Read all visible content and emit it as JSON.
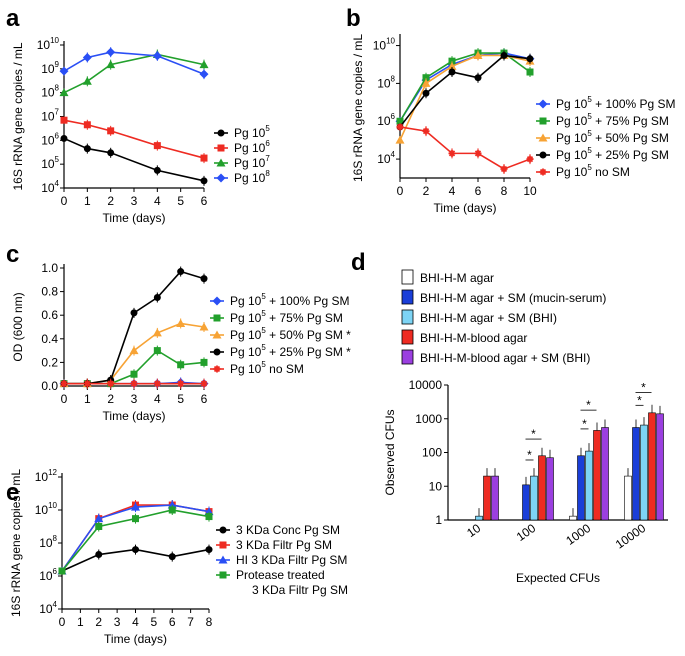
{
  "colors": {
    "black": "#000000",
    "red": "#ee2b22",
    "green": "#22a02c",
    "blue": "#2a4ff5",
    "orange": "#f7a335",
    "darkblue": "#1a3ed8",
    "lightblue": "#7dd4f5",
    "purple": "#9b3fe0",
    "white": "#ffffff"
  },
  "chart_data": [
    {
      "id": "a",
      "panel_label": "a",
      "type": "line",
      "yscale": "log",
      "ylabel": "16S rRNA gene copies / mL",
      "xlabel": "Time (days)",
      "xlim": [
        0,
        6
      ],
      "ylim_exp": [
        4,
        10
      ],
      "xticks": [
        "0",
        "1",
        "2",
        "3",
        "4",
        "5",
        "6"
      ],
      "series": [
        {
          "name": "Pg 10^5",
          "color": "black",
          "marker": "circle",
          "x": [
            0,
            1,
            2,
            4,
            6
          ],
          "y": [
            1200000.0,
            450000.0,
            300000.0,
            55000.0,
            20000.0
          ]
        },
        {
          "name": "Pg 10^6",
          "color": "red",
          "marker": "square",
          "x": [
            0,
            1,
            2,
            4,
            6
          ],
          "y": [
            7000000.0,
            4500000.0,
            2500000.0,
            600000.0,
            180000.0
          ]
        },
        {
          "name": "Pg 10^7",
          "color": "green",
          "marker": "triangle",
          "x": [
            0,
            1,
            2,
            4,
            6
          ],
          "y": [
            100000000.0,
            300000000.0,
            1500000000.0,
            4000000000.0,
            1500000000.0
          ]
        },
        {
          "name": "Pg 10^8",
          "color": "blue",
          "marker": "diamond",
          "x": [
            0,
            1,
            2,
            4,
            6
          ],
          "y": [
            800000000.0,
            3000000000.0,
            5000000000.0,
            3500000000.0,
            600000000.0
          ]
        }
      ],
      "legend": [
        {
          "base": "Pg 10",
          "exp": "5",
          "rest": "",
          "color": "black",
          "marker": "circle"
        },
        {
          "base": "Pg 10",
          "exp": "6",
          "rest": "",
          "color": "red",
          "marker": "square"
        },
        {
          "base": "Pg 10",
          "exp": "7",
          "rest": "",
          "color": "green",
          "marker": "triangle"
        },
        {
          "base": "Pg 10",
          "exp": "8",
          "rest": "",
          "color": "blue",
          "marker": "diamond"
        }
      ]
    },
    {
      "id": "b",
      "panel_label": "b",
      "type": "line",
      "yscale": "log",
      "ylabel": "16S rRNA gene copies / mL",
      "xlabel": "Time (days)",
      "xlim": [
        0,
        10
      ],
      "ylim_exp": [
        3,
        10.4
      ],
      "yticks_exp": [
        4,
        6,
        8,
        10
      ],
      "xticks": [
        "0",
        "2",
        "4",
        "6",
        "8",
        "10"
      ],
      "series": [
        {
          "name": "Pg 10^5 + 100% Pg SM",
          "color": "blue",
          "marker": "diamond",
          "x": [
            0,
            2,
            4,
            6,
            8,
            10
          ],
          "y": [
            1000000.0,
            150000000.0,
            1000000000.0,
            3000000000.0,
            4000000000.0,
            2000000000.0
          ]
        },
        {
          "name": "Pg 10^5 + 75% Pg SM",
          "color": "green",
          "marker": "square",
          "x": [
            0,
            2,
            4,
            6,
            8,
            10
          ],
          "y": [
            1000000.0,
            200000000.0,
            1500000000.0,
            4000000000.0,
            4000000000.0,
            400000000.0
          ]
        },
        {
          "name": "Pg 10^5 + 50% Pg SM",
          "color": "orange",
          "marker": "triangle",
          "x": [
            0,
            2,
            4,
            6,
            8,
            10
          ],
          "y": [
            100000.0,
            100000000.0,
            800000000.0,
            3000000000.0,
            3000000000.0,
            1500000000.0
          ]
        },
        {
          "name": "Pg 10^5 + 25% Pg SM",
          "color": "black",
          "marker": "circle",
          "x": [
            0,
            2,
            4,
            6,
            8,
            10
          ],
          "y": [
            500000.0,
            30000000.0,
            400000000.0,
            200000000.0,
            3000000000.0,
            2000000000.0
          ]
        },
        {
          "name": "Pg 10^5 no SM",
          "color": "red",
          "marker": "star",
          "x": [
            0,
            2,
            4,
            6,
            8,
            10
          ],
          "y": [
            500000.0,
            300000.0,
            20000.0,
            20000.0,
            3000.0,
            10000.0
          ]
        }
      ],
      "legend": [
        {
          "base": "Pg 10",
          "exp": "5",
          "rest": " + 100% Pg SM",
          "color": "blue",
          "marker": "diamond"
        },
        {
          "base": "Pg 10",
          "exp": "5",
          "rest": " + 75% Pg SM",
          "color": "green",
          "marker": "square"
        },
        {
          "base": "Pg 10",
          "exp": "5",
          "rest": " + 50% Pg SM",
          "color": "orange",
          "marker": "triangle"
        },
        {
          "base": "Pg 10",
          "exp": "5",
          "rest": " + 25% Pg SM",
          "color": "black",
          "marker": "circle"
        },
        {
          "base": "Pg 10",
          "exp": "5",
          "rest": " no SM",
          "color": "red",
          "marker": "star"
        }
      ]
    },
    {
      "id": "c",
      "panel_label": "c",
      "type": "line",
      "yscale": "linear",
      "ylabel": "OD (600 nm)",
      "xlabel": "Time (days)",
      "xlim": [
        0,
        6
      ],
      "ylim": [
        0,
        1.0
      ],
      "yticks": [
        "0.0",
        "0.2",
        "0.4",
        "0.6",
        "0.8",
        "1.0"
      ],
      "xticks": [
        "0",
        "1",
        "2",
        "3",
        "4",
        "5",
        "6"
      ],
      "series": [
        {
          "name": "Pg 10^5 + 100% Pg SM",
          "color": "blue",
          "marker": "diamond",
          "x": [
            0,
            1,
            2,
            3,
            4,
            5,
            6
          ],
          "y": [
            0.02,
            0.02,
            0.02,
            0.02,
            0.02,
            0.03,
            0.02
          ]
        },
        {
          "name": "Pg 10^5 + 75% Pg SM",
          "color": "green",
          "marker": "square",
          "x": [
            0,
            1,
            2,
            3,
            4,
            5,
            6
          ],
          "y": [
            0.02,
            0.02,
            0.02,
            0.1,
            0.3,
            0.18,
            0.2
          ]
        },
        {
          "name": "Pg 10^5 + 50% Pg SM *",
          "color": "orange",
          "marker": "triangle",
          "x": [
            0,
            1,
            2,
            3,
            4,
            5,
            6
          ],
          "y": [
            0.02,
            0.02,
            0.05,
            0.3,
            0.45,
            0.53,
            0.5
          ]
        },
        {
          "name": "Pg 10^5 + 25% Pg SM *",
          "color": "black",
          "marker": "circle",
          "x": [
            0,
            1,
            2,
            3,
            4,
            5,
            6
          ],
          "y": [
            0.02,
            0.02,
            0.05,
            0.62,
            0.75,
            0.97,
            0.91
          ]
        },
        {
          "name": "Pg 10^5 no SM",
          "color": "red",
          "marker": "star",
          "x": [
            0,
            1,
            2,
            3,
            4,
            5,
            6
          ],
          "y": [
            0.02,
            0.02,
            0.02,
            0.02,
            0.02,
            0.02,
            0.02
          ]
        }
      ],
      "legend": [
        {
          "base": "Pg 10",
          "exp": "5",
          "rest": " + 100% Pg SM",
          "color": "blue",
          "marker": "diamond"
        },
        {
          "base": "Pg 10",
          "exp": "5",
          "rest": " + 75% Pg SM",
          "color": "green",
          "marker": "square"
        },
        {
          "base": "Pg 10",
          "exp": "5",
          "rest": " + 50% Pg SM *",
          "color": "orange",
          "marker": "triangle"
        },
        {
          "base": "Pg 10",
          "exp": "5",
          "rest": " + 25% Pg SM *",
          "color": "black",
          "marker": "circle"
        },
        {
          "base": "Pg 10",
          "exp": "5",
          "rest": " no SM",
          "color": "red",
          "marker": "star"
        }
      ]
    },
    {
      "id": "d",
      "panel_label": "d",
      "type": "bar",
      "yscale": "log",
      "ylabel": "Observed CFUs",
      "xlabel": "Expected CFUs",
      "categories": [
        "10",
        "100",
        "1000",
        "10000"
      ],
      "yticks": [
        "1",
        "10",
        "100",
        "1000",
        "10000"
      ],
      "ylim": [
        1,
        10000
      ],
      "series": [
        {
          "name": "BHI-H-M agar",
          "color": "white",
          "values": [
            1,
            1,
            1.3,
            20
          ]
        },
        {
          "name": "BHI-H-M agar + SM (mucin-serum)",
          "color": "darkblue",
          "values": [
            1,
            11,
            80,
            550
          ]
        },
        {
          "name": "BHI-H-M agar + SM (BHI)",
          "color": "lightblue",
          "values": [
            1.3,
            20,
            110,
            650
          ]
        },
        {
          "name": "BHI-H-M-blood agar",
          "color": "red",
          "values": [
            20,
            80,
            450,
            1500
          ]
        },
        {
          "name": "BHI-H-M-blood agar + SM (BHI)",
          "color": "purple",
          "values": [
            20,
            70,
            550,
            1400
          ]
        }
      ],
      "annotations": [
        "*",
        "*",
        "*",
        "*",
        "*",
        "*"
      ]
    },
    {
      "id": "e",
      "panel_label": "e",
      "type": "line",
      "yscale": "log",
      "ylabel": "16S rRNA gene copies / mL",
      "xlabel": "Time (days)",
      "xlim": [
        0,
        8
      ],
      "ylim_exp": [
        4,
        12
      ],
      "yticks_exp": [
        4,
        6,
        8,
        10,
        12
      ],
      "xticks": [
        "0",
        "1",
        "2",
        "3",
        "4",
        "5",
        "6",
        "7",
        "8"
      ],
      "series": [
        {
          "name": "3 KDa Conc Pg SM",
          "color": "black",
          "marker": "circle",
          "x": [
            0,
            2,
            4,
            6,
            8
          ],
          "y": [
            2000000.0,
            20000000.0,
            40000000.0,
            15000000.0,
            40000000.0
          ]
        },
        {
          "name": "3 KDa Filtr Pg SM",
          "color": "red",
          "marker": "square",
          "x": [
            0,
            2,
            4,
            6,
            8
          ],
          "y": [
            2000000.0,
            3000000000.0,
            20000000000.0,
            20000000000.0,
            8000000000.0
          ]
        },
        {
          "name": "HI 3 KDa Filtr Pg SM",
          "color": "blue",
          "marker": "triangle",
          "x": [
            0,
            2,
            4,
            6,
            8
          ],
          "y": [
            2000000.0,
            3000000000.0,
            15000000000.0,
            20000000000.0,
            8000000000.0
          ]
        },
        {
          "name": "Protease treated 3 KDa Filtr Pg SM",
          "color": "green",
          "marker": "square",
          "x": [
            0,
            2,
            4,
            6,
            8
          ],
          "y": [
            2000000.0,
            1000000000.0,
            3000000000.0,
            10000000000.0,
            4000000000.0
          ]
        }
      ],
      "legend": [
        {
          "base": "3 KDa Conc Pg SM",
          "exp": "",
          "rest": "",
          "color": "black",
          "marker": "circle"
        },
        {
          "base": "3 KDa Filtr Pg SM",
          "exp": "",
          "rest": "",
          "color": "red",
          "marker": "square"
        },
        {
          "base": "HI 3 KDa Filtr Pg SM",
          "exp": "",
          "rest": "",
          "color": "blue",
          "marker": "triangle"
        },
        {
          "base": "Protease treated",
          "exp": "",
          "rest": "",
          "color": "green",
          "marker": "square"
        }
      ],
      "legend_extra": "3 KDa Filtr Pg SM"
    }
  ]
}
